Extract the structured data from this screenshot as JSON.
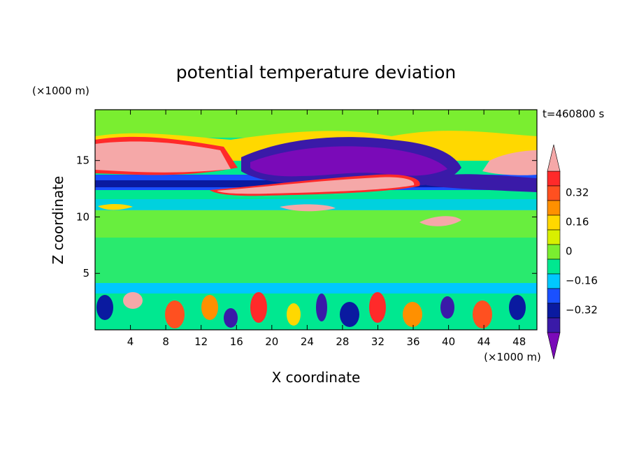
{
  "chart_data": {
    "type": "heatmap",
    "title": "potential temperature deviation",
    "time_label": "t=460800 s",
    "xlabel": "X coordinate",
    "ylabel": "Z coordinate",
    "x_units": "(×1000 m)",
    "y_units": "(×1000 m)",
    "xlim": [
      0,
      50
    ],
    "ylim": [
      0,
      19.5
    ],
    "x_ticks": [
      4,
      8,
      12,
      16,
      20,
      24,
      28,
      32,
      36,
      40,
      44,
      48
    ],
    "y_ticks": [
      5,
      10,
      15
    ],
    "colorbar": {
      "levels": [
        -0.48,
        -0.4,
        -0.32,
        -0.24,
        -0.16,
        -0.08,
        0,
        0.08,
        0.16,
        0.24,
        0.32,
        0.4,
        0.48
      ],
      "labeled_levels": [
        0.32,
        0.16,
        0,
        -0.16,
        -0.32
      ],
      "labels": [
        "0.32",
        "0.16",
        "0",
        "−0.16",
        "−0.32"
      ],
      "colors": [
        "#7a0ab8",
        "#3a1aa8",
        "#0a1aa0",
        "#1a50ff",
        "#00c8ff",
        "#00e890",
        "#7aee30",
        "#d8f000",
        "#ffd800",
        "#ff9000",
        "#ff5020",
        "#ff2a2a",
        "#f5a8a8"
      ],
      "extend": "both"
    },
    "regions": [
      {
        "band": "upper layer z 16-18",
        "x": [
          0,
          50
        ],
        "value": 0.1
      },
      {
        "band": "warm tongue z 14.5-17",
        "x": [
          0,
          16
        ],
        "value": 0.5
      },
      {
        "band": "cold core z 13-16.5",
        "x": [
          17,
          42
        ],
        "value": -0.5
      },
      {
        "band": "warm layer z 12-14",
        "x": [
          12,
          38
        ],
        "value": 0.45
      },
      {
        "band": "cold band z 12.5-13.5",
        "x": [
          0,
          50
        ],
        "value": -0.35
      },
      {
        "band": "mid troposphere z 4-12",
        "x": [
          0,
          50
        ],
        "value": 0.0
      },
      {
        "band": "boundary layer z 0-3.5",
        "x": [
          0,
          50
        ],
        "value": "mixed ±0.4"
      }
    ]
  }
}
